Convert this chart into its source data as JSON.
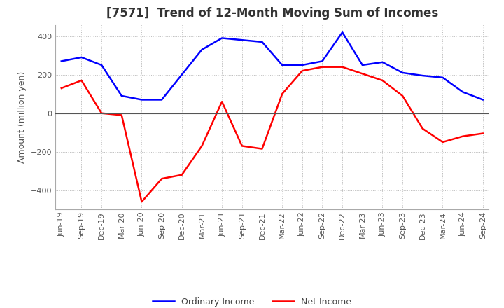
{
  "title": "[7571]  Trend of 12-Month Moving Sum of Incomes",
  "ylabel": "Amount (million yen)",
  "x_labels": [
    "Jun-19",
    "Sep-19",
    "Dec-19",
    "Mar-20",
    "Jun-20",
    "Sep-20",
    "Dec-20",
    "Mar-21",
    "Jun-21",
    "Sep-21",
    "Dec-21",
    "Mar-22",
    "Jun-22",
    "Sep-22",
    "Dec-22",
    "Mar-23",
    "Jun-23",
    "Sep-23",
    "Dec-23",
    "Mar-24",
    "Jun-24",
    "Sep-24"
  ],
  "ordinary_income": [
    270,
    290,
    250,
    90,
    70,
    70,
    200,
    330,
    390,
    380,
    370,
    250,
    250,
    270,
    420,
    250,
    265,
    210,
    195,
    185,
    110,
    70
  ],
  "net_income": [
    130,
    170,
    0,
    -10,
    -460,
    -340,
    -320,
    -170,
    60,
    -170,
    -185,
    100,
    220,
    240,
    240,
    205,
    170,
    90,
    -80,
    -150,
    -120,
    -105
  ],
  "ordinary_color": "#0000ff",
  "net_color": "#ff0000",
  "ylim": [
    -500,
    460
  ],
  "yticks": [
    -400,
    -200,
    0,
    200,
    400
  ],
  "background_color": "#ffffff",
  "grid_color": "#bbbbbb",
  "title_fontsize": 12,
  "label_fontsize": 9,
  "tick_fontsize": 8
}
